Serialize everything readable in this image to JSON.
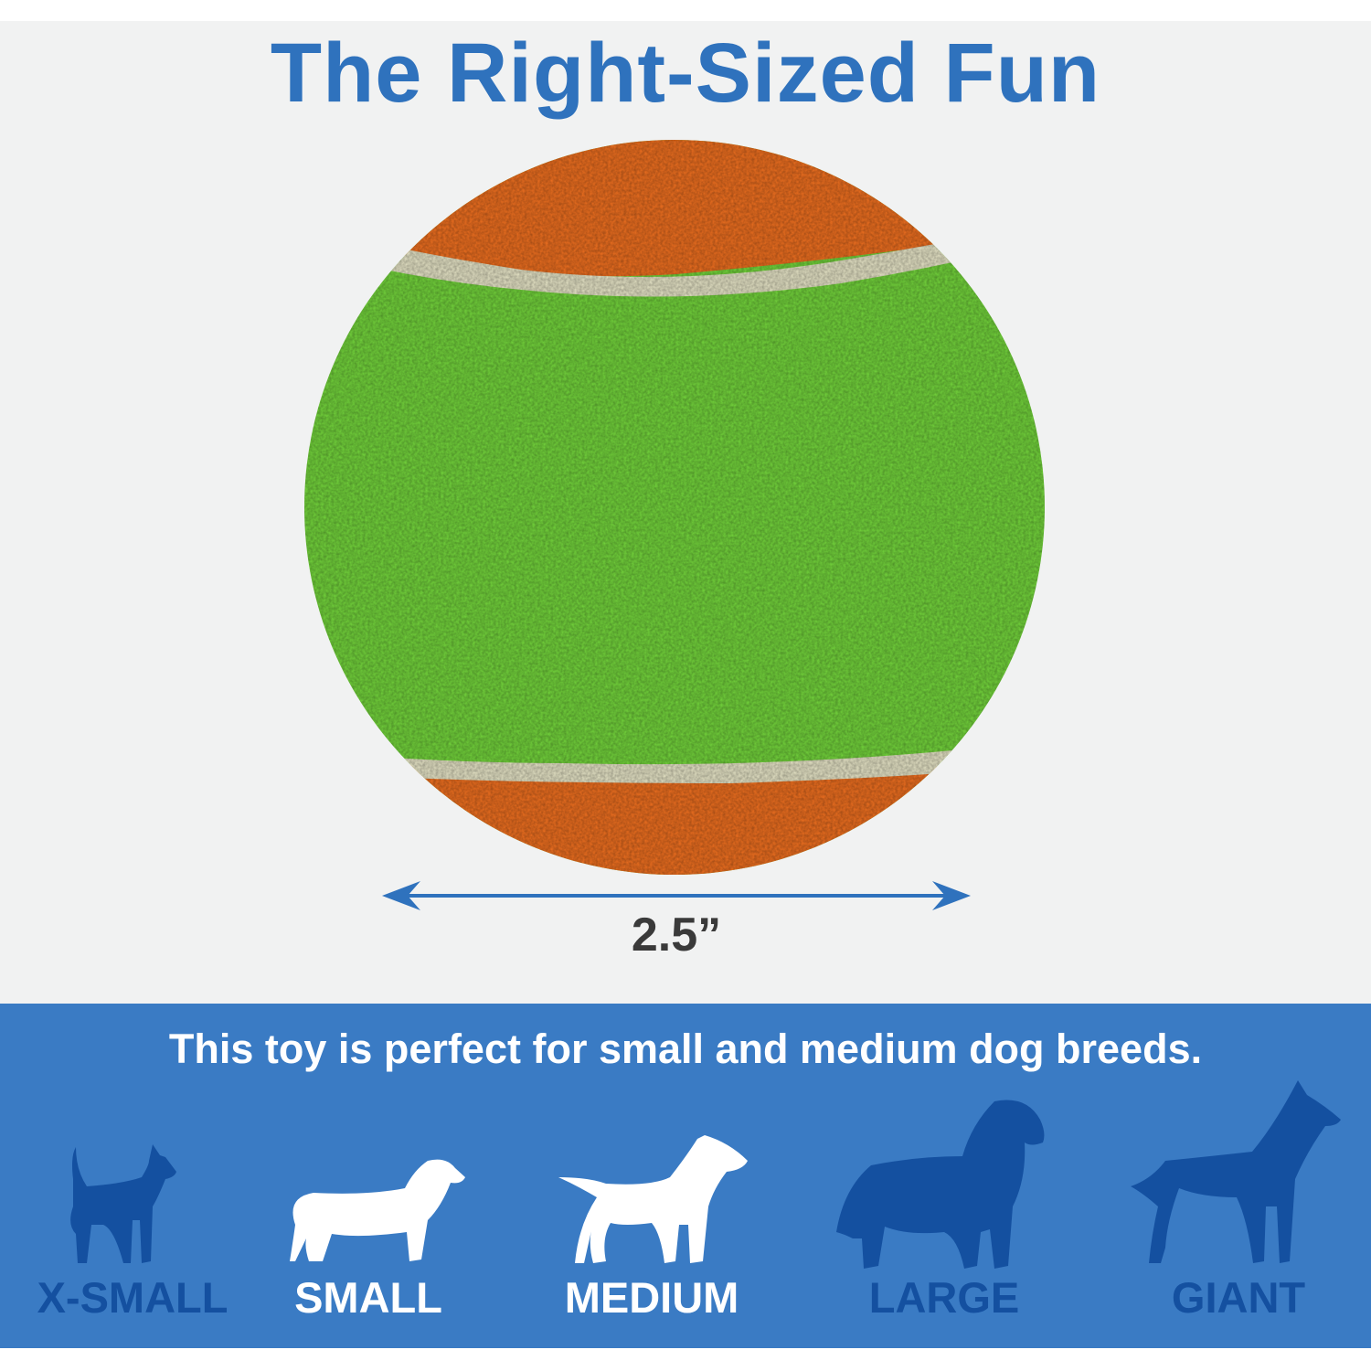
{
  "title": "The Right-Sized Fun",
  "dimension_label": "2.5”",
  "tagline": "This toy is perfect for small and medium dog breeds.",
  "colors": {
    "accent": "#2f72bd",
    "band": "#3a7bc4",
    "suitable": "#ffffff",
    "unsuitable": "#1450a0",
    "ball_green": "#72d43a",
    "ball_orange": "#f36f1c"
  },
  "sizes": [
    {
      "label": "X-SMALL",
      "suitable": false,
      "icon": "chihuahua-silhouette-icon"
    },
    {
      "label": "SMALL",
      "suitable": true,
      "icon": "dachshund-silhouette-icon"
    },
    {
      "label": "MEDIUM",
      "suitable": true,
      "icon": "bull-terrier-silhouette-icon"
    },
    {
      "label": "LARGE",
      "suitable": false,
      "icon": "golden-retriever-silhouette-icon"
    },
    {
      "label": "GIANT",
      "suitable": false,
      "icon": "great-dane-silhouette-icon"
    }
  ]
}
